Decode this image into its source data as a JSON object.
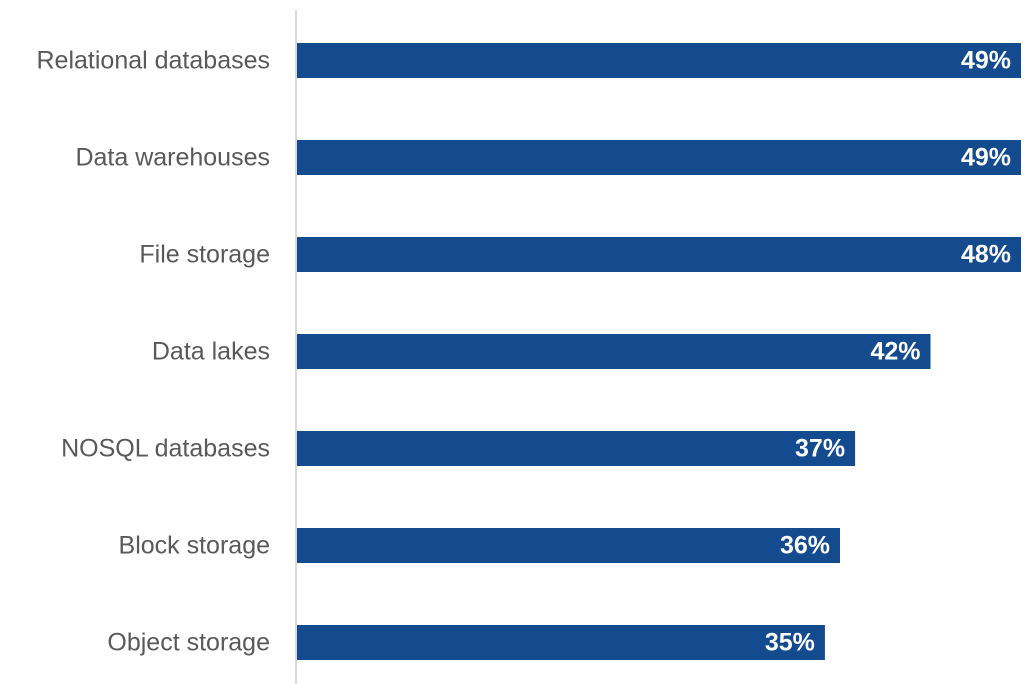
{
  "chart_data": {
    "type": "bar",
    "orientation": "horizontal",
    "categories": [
      "Relational databases",
      "Data warehouses",
      "File storage",
      "Data lakes",
      "NOSQL databases",
      "Block storage",
      "Object storage"
    ],
    "values": [
      49,
      49,
      48,
      42,
      37,
      36,
      35
    ],
    "value_labels": [
      "49%",
      "49%",
      "48%",
      "42%",
      "37%",
      "36%",
      "35%"
    ],
    "unit": "%",
    "xlim": [
      0,
      48
    ],
    "grid": false,
    "legend": "none",
    "colors": {
      "bar": "#144b8f",
      "value_label": "#ffffff",
      "category_label": "#595959",
      "axis_line": "#d9d9d9"
    }
  }
}
